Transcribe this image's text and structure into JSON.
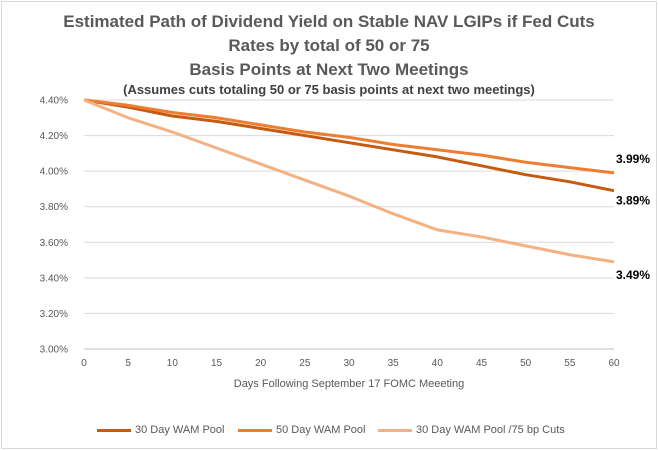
{
  "chart_data": {
    "type": "line",
    "title_lines": [
      "Estimated Path of Dividend Yield on Stable NAV LGIPs if Fed Cuts",
      "Rates by total of 50 or 75",
      "Basis Points at Next Two Meetings"
    ],
    "subtitle": "(Assumes cuts totaling 50 or 75 basis points at next two meetings)",
    "xlabel": "Days Following September 17 FOMC Meeeting",
    "ylabel": "",
    "x": [
      0,
      5,
      10,
      15,
      20,
      25,
      30,
      35,
      40,
      45,
      50,
      55,
      60
    ],
    "x_ticks": [
      "0",
      "5",
      "10",
      "15",
      "20",
      "25",
      "30",
      "35",
      "40",
      "45",
      "50",
      "55",
      "60"
    ],
    "xlim": [
      0,
      60
    ],
    "y_ticks": [
      "4.40%",
      "4.20%",
      "4.00%",
      "3.80%",
      "3.60%",
      "3.40%",
      "3.20%",
      "3.00%"
    ],
    "y_tick_values": [
      4.4,
      4.2,
      4.0,
      3.8,
      3.6,
      3.4,
      3.2,
      3.0
    ],
    "ylim": [
      3.0,
      4.4
    ],
    "grid": true,
    "legend_position": "bottom",
    "series": [
      {
        "name": "30 Day WAM Pool",
        "color": "#c55a11",
        "values": [
          4.4,
          4.36,
          4.31,
          4.28,
          4.24,
          4.2,
          4.16,
          4.12,
          4.08,
          4.03,
          3.98,
          3.94,
          3.89
        ],
        "end_label": "3.89%"
      },
      {
        "name": "50 Day WAM Pool",
        "color": "#ed7d31",
        "values": [
          4.4,
          4.37,
          4.33,
          4.3,
          4.26,
          4.22,
          4.19,
          4.15,
          4.12,
          4.09,
          4.05,
          4.02,
          3.99
        ],
        "end_label": "3.99%"
      },
      {
        "name": "30 Day WAM Pool /75 bp Cuts",
        "color": "#f4b183",
        "values": [
          4.4,
          4.3,
          4.22,
          4.13,
          4.04,
          3.95,
          3.86,
          3.76,
          3.67,
          3.63,
          3.58,
          3.53,
          3.49
        ],
        "end_label": "3.49%"
      }
    ]
  }
}
